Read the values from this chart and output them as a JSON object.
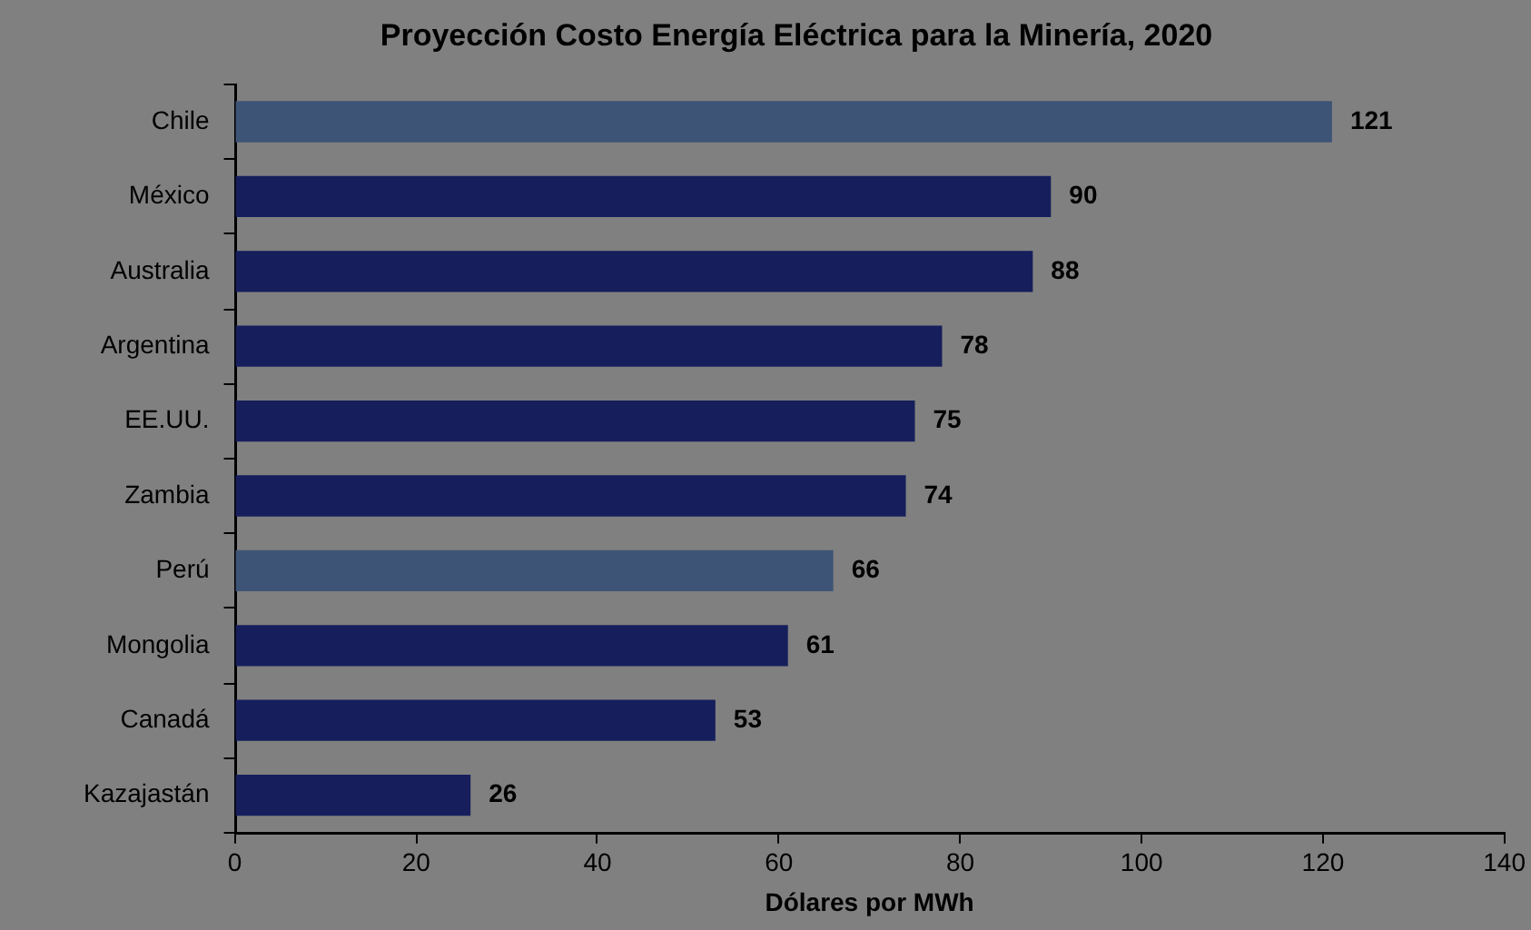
{
  "chart_data": {
    "type": "bar",
    "orientation": "horizontal",
    "title": "Proyección Costo Energía Eléctrica para la Minería, 2020",
    "xlabel": "Dólares por MWh",
    "categories": [
      "Chile",
      "México",
      "Australia",
      "Argentina",
      "EE.UU.",
      "Zambia",
      "Perú",
      "Mongolia",
      "Canadá",
      "Kazajastán"
    ],
    "values": [
      121,
      90,
      88,
      78,
      75,
      74,
      66,
      61,
      53,
      26
    ],
    "colors": [
      "#3e5476",
      "#161f5c",
      "#161f5c",
      "#161f5c",
      "#161f5c",
      "#161f5c",
      "#3e5476",
      "#161f5c",
      "#161f5c",
      "#161f5c"
    ],
    "xlim": [
      0,
      140
    ],
    "xticks": [
      0,
      20,
      40,
      60,
      80,
      100,
      120,
      140
    ],
    "grid": false,
    "legend": false,
    "data_labels": true
  }
}
